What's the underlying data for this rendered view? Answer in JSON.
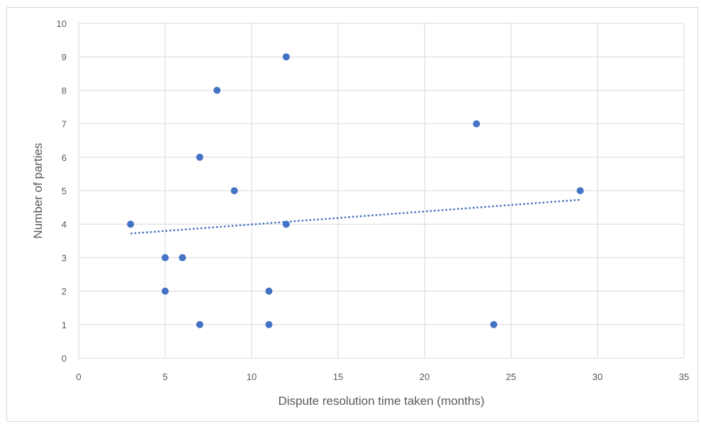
{
  "chart_data": {
    "type": "scatter",
    "title": "",
    "xlabel": "Dispute resolution time taken (months)",
    "ylabel": "Number of parties",
    "xlim": [
      0,
      35
    ],
    "ylim": [
      0,
      10
    ],
    "x_ticks": [
      0,
      5,
      10,
      15,
      20,
      25,
      30,
      35
    ],
    "y_ticks": [
      0,
      1,
      2,
      3,
      4,
      5,
      6,
      7,
      8,
      9,
      10
    ],
    "grid": true,
    "legend": "none",
    "series": [
      {
        "color": "#4472c4",
        "points": [
          {
            "x": 3,
            "y": 4
          },
          {
            "x": 5,
            "y": 3
          },
          {
            "x": 5,
            "y": 2
          },
          {
            "x": 6,
            "y": 3
          },
          {
            "x": 7,
            "y": 6
          },
          {
            "x": 7,
            "y": 1
          },
          {
            "x": 8,
            "y": 8
          },
          {
            "x": 9,
            "y": 5
          },
          {
            "x": 11,
            "y": 2
          },
          {
            "x": 11,
            "y": 1
          },
          {
            "x": 12,
            "y": 9
          },
          {
            "x": 12,
            "y": 4
          },
          {
            "x": 23,
            "y": 7
          },
          {
            "x": 24,
            "y": 1
          },
          {
            "x": 29,
            "y": 5
          }
        ]
      }
    ],
    "trendline": {
      "type": "linear",
      "style": "dotted",
      "color": "#4472c4",
      "from": {
        "x": 3,
        "y": 3.72
      },
      "to": {
        "x": 29,
        "y": 4.73
      }
    },
    "colors": {
      "gridline": "#d9d9d9",
      "text": "#595959",
      "border": "#d9d9d9"
    }
  }
}
